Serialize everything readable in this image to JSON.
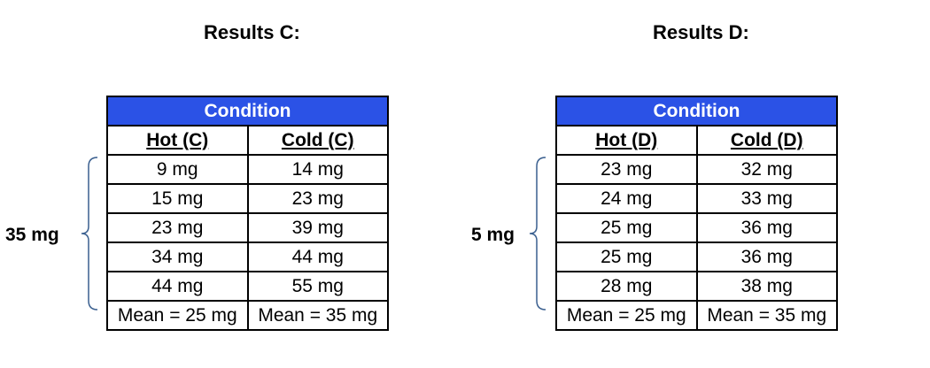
{
  "panels": [
    {
      "title": "Results C:",
      "range_label": "35 mg",
      "header": "Condition",
      "columns": [
        "Hot (C)",
        "Cold (C)"
      ],
      "rows": [
        [
          "9 mg",
          "14 mg"
        ],
        [
          "15 mg",
          "23 mg"
        ],
        [
          "23 mg",
          "39 mg"
        ],
        [
          "34 mg",
          "44 mg"
        ],
        [
          "44 mg",
          "55 mg"
        ]
      ],
      "means": [
        "Mean = 25 mg",
        "Mean = 35 mg"
      ]
    },
    {
      "title": "Results D:",
      "range_label": "5 mg",
      "header": "Condition",
      "columns": [
        "Hot (D)",
        "Cold (D)"
      ],
      "rows": [
        [
          "23 mg",
          "32 mg"
        ],
        [
          "24 mg",
          "33 mg"
        ],
        [
          "25 mg",
          "36 mg"
        ],
        [
          "25 mg",
          "36 mg"
        ],
        [
          "28 mg",
          "38 mg"
        ]
      ],
      "means": [
        "Mean = 25 mg",
        "Mean = 35 mg"
      ]
    }
  ],
  "colors": {
    "header_background": "#2b52e6",
    "header_text": "#ffffff",
    "brace": "#3a5f8f"
  }
}
